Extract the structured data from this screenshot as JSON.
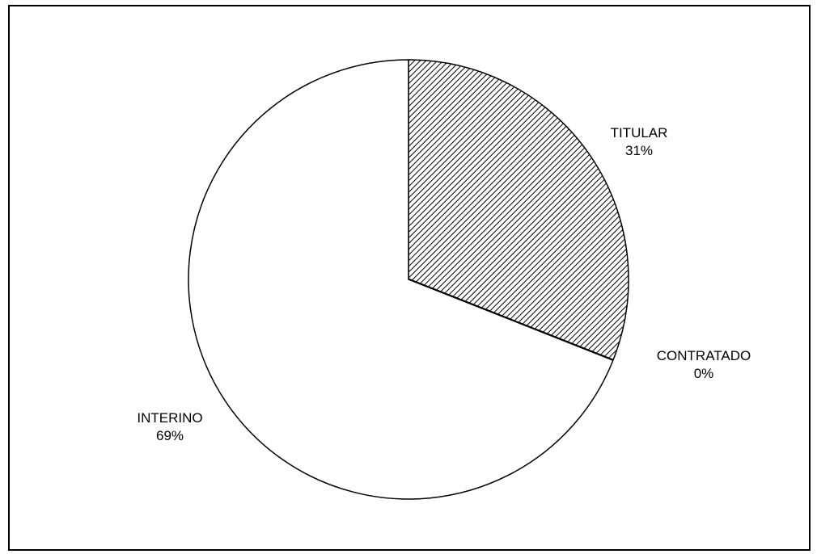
{
  "chart_data": {
    "type": "pie",
    "title": "",
    "slices": [
      {
        "label": "TITULAR",
        "value": 31,
        "percent_label": "31%",
        "fill": "hatch"
      },
      {
        "label": "CONTRATADO",
        "value": 0,
        "percent_label": "0%",
        "fill": "#000000"
      },
      {
        "label": "INTERINO",
        "value": 69,
        "percent_label": "69%",
        "fill": "#ffffff"
      }
    ],
    "start_angle_deg": 0,
    "direction": "clockwise",
    "legend": "none",
    "labels_outside": true
  }
}
